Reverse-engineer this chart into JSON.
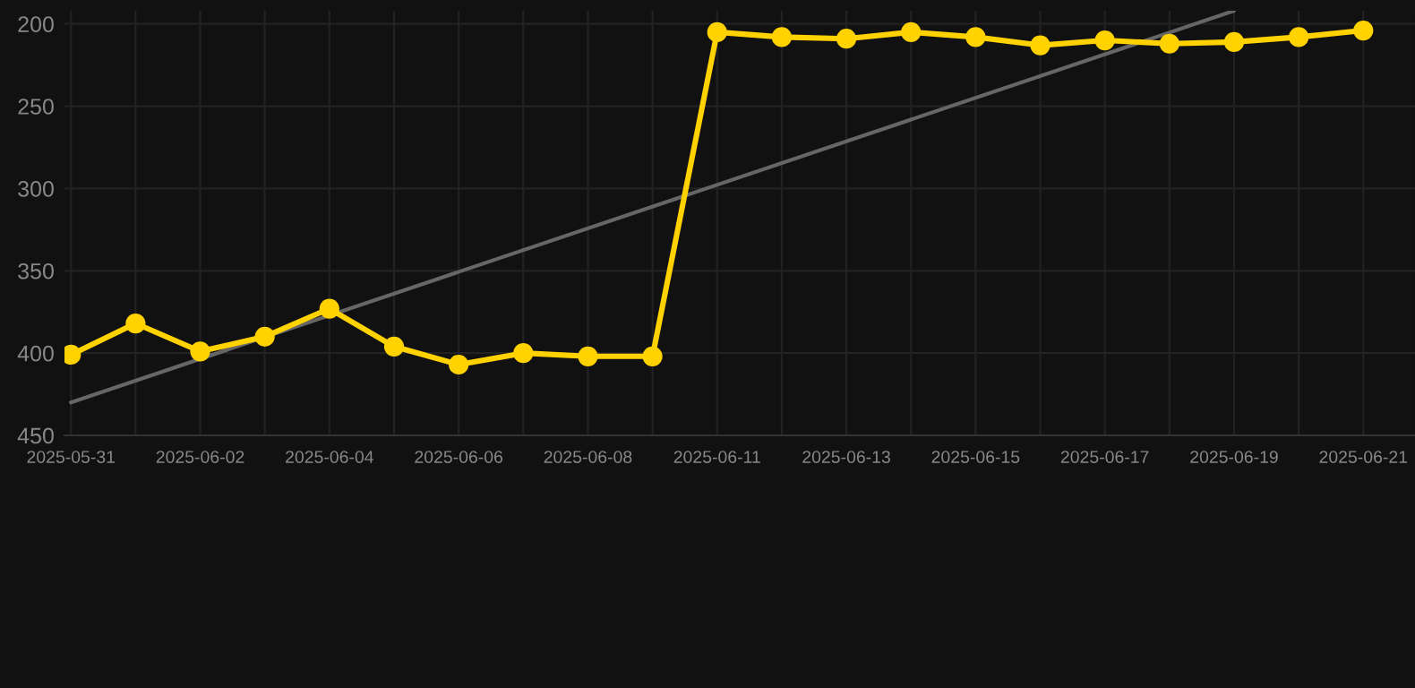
{
  "chart_data": {
    "type": "line",
    "categories": [
      "2025-05-31",
      null,
      "2025-06-02",
      null,
      "2025-06-04",
      null,
      "2025-06-06",
      null,
      "2025-06-08",
      null,
      "2025-06-11",
      null,
      "2025-06-13",
      null,
      "2025-06-15",
      null,
      "2025-06-17",
      null,
      "2025-06-19",
      null,
      "2025-06-21"
    ],
    "series": [
      {
        "color": "#ffd200",
        "marker": "circle",
        "values": [
          401,
          382,
          399,
          390,
          373,
          396,
          407,
          400,
          402,
          402,
          205,
          208,
          209,
          205,
          208,
          213,
          210,
          212,
          211,
          208,
          204
        ]
      },
      {
        "color": "#666666",
        "marker": "none",
        "values": [
          430,
          null,
          null,
          null,
          null,
          null,
          null,
          null,
          null,
          null,
          null,
          null,
          null,
          null,
          null,
          null,
          null,
          null,
          192,
          null,
          null
        ]
      }
    ],
    "ylim": [
      450,
      192
    ],
    "yticks": [
      200,
      250,
      300,
      350,
      400,
      450
    ],
    "grid": true
  }
}
